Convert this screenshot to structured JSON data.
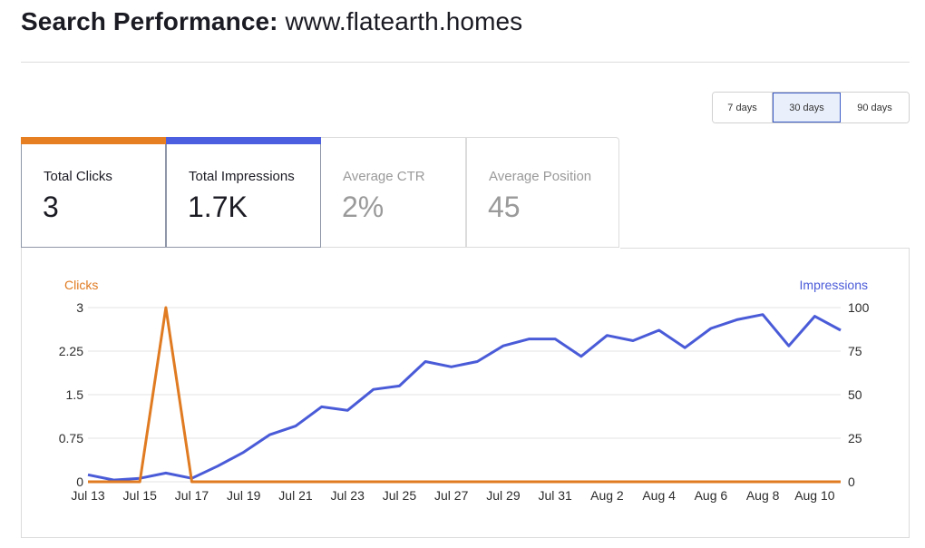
{
  "header": {
    "title_label": "Search Performance:",
    "site": "www.flatearth.homes"
  },
  "date_range": {
    "options": [
      "7 days",
      "30 days",
      "90 days"
    ],
    "selected": "30 days"
  },
  "metrics": [
    {
      "label": "Total Clicks",
      "value": "3",
      "active": true,
      "color": "#e67e22"
    },
    {
      "label": "Total Impressions",
      "value": "1.7K",
      "active": true,
      "color": "#4b5fe0"
    },
    {
      "label": "Average CTR",
      "value": "2%",
      "active": false
    },
    {
      "label": "Average Position",
      "value": "45",
      "active": false
    }
  ],
  "colors": {
    "clicks": "#e07b22",
    "impressions": "#4a5bd8",
    "grid": "#e3e3e3",
    "tick": "#2b2b2b"
  },
  "chart_data": {
    "type": "line",
    "x": [
      "Jul 13",
      "Jul 14",
      "Jul 15",
      "Jul 16",
      "Jul 17",
      "Jul 18",
      "Jul 19",
      "Jul 20",
      "Jul 21",
      "Jul 22",
      "Jul 23",
      "Jul 24",
      "Jul 25",
      "Jul 26",
      "Jul 27",
      "Jul 28",
      "Jul 29",
      "Jul 30",
      "Jul 31",
      "Aug 1",
      "Aug 2",
      "Aug 3",
      "Aug 4",
      "Aug 5",
      "Aug 6",
      "Aug 7",
      "Aug 8",
      "Aug 9",
      "Aug 10",
      "Aug 11"
    ],
    "x_tick_labels": [
      "Jul 13",
      "Jul 15",
      "Jul 17",
      "Jul 19",
      "Jul 21",
      "Jul 23",
      "Jul 25",
      "Jul 27",
      "Jul 29",
      "Jul 31",
      "Aug 2",
      "Aug 4",
      "Aug 6",
      "Aug 8",
      "Aug 10"
    ],
    "series": [
      {
        "name": "Clicks",
        "axis": "left",
        "values": [
          0,
          0,
          0,
          3,
          0,
          0,
          0,
          0,
          0,
          0,
          0,
          0,
          0,
          0,
          0,
          0,
          0,
          0,
          0,
          0,
          0,
          0,
          0,
          0,
          0,
          0,
          0,
          0,
          0,
          0
        ]
      },
      {
        "name": "Impressions",
        "axis": "right",
        "values": [
          4,
          1,
          2,
          5,
          2,
          9,
          17,
          27,
          32,
          43,
          41,
          53,
          55,
          69,
          66,
          69,
          78,
          82,
          82,
          72,
          84,
          81,
          87,
          77,
          88,
          93,
          96,
          78,
          95,
          87
        ]
      }
    ],
    "ylabel_left": "Clicks",
    "ylabel_right": "Impressions",
    "ylim_left": [
      0,
      3
    ],
    "yticks_left": [
      "0",
      "0.75",
      "1.5",
      "2.25",
      "3"
    ],
    "ylim_right": [
      0,
      100
    ],
    "yticks_right": [
      "0",
      "25",
      "50",
      "75",
      "100"
    ],
    "grid": true
  }
}
